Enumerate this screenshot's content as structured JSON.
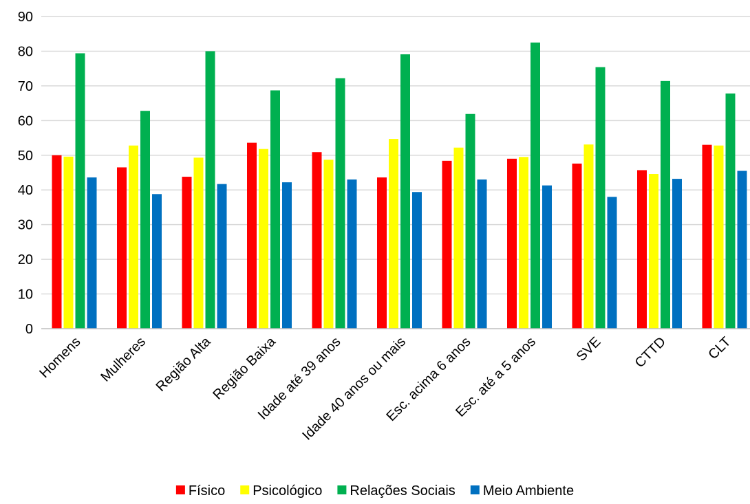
{
  "chart_data": {
    "type": "bar",
    "title": "",
    "xlabel": "",
    "ylabel": "",
    "ylim": [
      0,
      90
    ],
    "yticks": [
      0,
      10,
      20,
      30,
      40,
      50,
      60,
      70,
      80,
      90
    ],
    "grid": true,
    "legend_position": "bottom",
    "categories": [
      "Homens",
      "Mulheres",
      "Região Alta",
      "Região Baixa",
      "Idade até 39 anos",
      "Idade 40 anos ou mais",
      "Esc. acima 6 anos",
      "Esc. até a 5 anos",
      "SVE",
      "CTTD",
      "CLT"
    ],
    "series": [
      {
        "name": "Físico",
        "color": "#ff0000",
        "values": [
          50.0,
          46.5,
          43.8,
          53.6,
          50.9,
          43.6,
          48.4,
          49.0,
          47.6,
          45.7,
          53.0
        ]
      },
      {
        "name": "Psicológico",
        "color": "#ffff00",
        "values": [
          49.6,
          52.8,
          49.3,
          51.8,
          48.7,
          54.7,
          52.2,
          49.5,
          53.1,
          44.6,
          52.8
        ]
      },
      {
        "name": "Relações Sociais",
        "color": "#00b050",
        "values": [
          79.4,
          62.8,
          80.0,
          68.7,
          72.2,
          79.1,
          61.9,
          82.5,
          75.4,
          71.4,
          67.8
        ]
      },
      {
        "name": "Meio Ambiente",
        "color": "#0070c0",
        "values": [
          43.6,
          38.8,
          41.7,
          42.2,
          43.0,
          39.4,
          43.0,
          41.3,
          38.0,
          43.2,
          45.5
        ]
      }
    ]
  }
}
